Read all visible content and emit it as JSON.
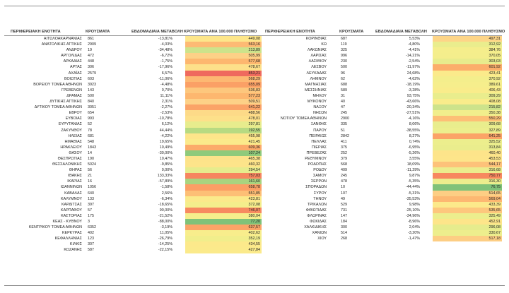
{
  "headers": {
    "unit": "ΠΕΡΙΦΕΡΕΙΑΚΗ ΕΝΟΤΗΤΑ",
    "cases": "ΚΡΟΥΣΜΑΤΑ",
    "weekly_change": "ΕΒΔΟΜΑΔΙΑΙΑ ΜΕΤΑΒΟΛΗ",
    "rate": "ΚΡΟΥΣΜΑΤΑ ΑΝΑ 100.000 ΠΛΗΘΥΣΜΟ"
  },
  "left_rows": [
    {
      "name": "ΑΙΤΩΛΟΑΚΑΡΝΑΝΙΑΣ",
      "cases": "861",
      "change": "-13,81%",
      "rate": "449,08",
      "color": "#fde68a"
    },
    {
      "name": "ΑΝΑΤΟΛΙΚΗΣ ΑΤΤΙΚΗΣ",
      "cases": "2909",
      "change": "-4,03%",
      "rate": "563,16",
      "color": "#fdba74"
    },
    {
      "name": "ΑΝΔΡΟΥ",
      "cases": "19",
      "change": "-34,48%",
      "rate": "213,89",
      "color": "#cde38b"
    },
    {
      "name": "ΑΡΓΟΛΙΔΑΣ",
      "cases": "472",
      "change": "-6,72%",
      "rate": "505,99",
      "color": "#fdd187"
    },
    {
      "name": "ΑΡΚΑΔΙΑΣ",
      "cases": "448",
      "change": "-1,75%",
      "rate": "577,68",
      "color": "#fdb76f"
    },
    {
      "name": "ΑΡΤΑΣ",
      "cases": "306",
      "change": "-17,96%",
      "rate": "478,67",
      "color": "#fde08a"
    },
    {
      "name": "ΑΧΑΪΑΣ",
      "cases": "2579",
      "change": "6,57%",
      "rate": "853,21",
      "color": "#ef6a5e"
    },
    {
      "name": "ΒΟΙΩΤΙΑΣ",
      "cases": "603",
      "change": "-11,06%",
      "rate": "568,29",
      "color": "#fdb872"
    },
    {
      "name": "ΒΟΡΕΙΟΥ ΤΟΜΕΑ ΑΘΗΝΩΝ",
      "cases": "3923",
      "change": "-4,48%",
      "rate": "655,09",
      "color": "#fba066"
    },
    {
      "name": "ΓΡΕΒΕΝΩΝ",
      "cases": "143",
      "change": "0,70%",
      "rate": "536,83",
      "color": "#fdc77d"
    },
    {
      "name": "ΔΡΑΜΑΣ",
      "cases": "500",
      "change": "11,11%",
      "rate": "577,23",
      "color": "#fdb76f"
    },
    {
      "name": "ΔΥΤΙΚΗΣ ΑΤΤΙΚΗΣ",
      "cases": "840",
      "change": "2,31%",
      "rate": "509,51",
      "color": "#fdd187"
    },
    {
      "name": "ΔΥΤΙΚΟΥ ΤΟΜΕΑ ΑΘΗΝΩΝ",
      "cases": "3051",
      "change": "-2,27%",
      "rate": "641,22",
      "color": "#fba367"
    },
    {
      "name": "ΕΒΡΟΥ",
      "cases": "654",
      "change": "-2,53%",
      "rate": "488,56",
      "color": "#fdda88"
    },
    {
      "name": "ΕΥΒΟΙΑΣ",
      "cases": "993",
      "change": "-10,78%",
      "rate": "478,01",
      "color": "#fde08a"
    },
    {
      "name": "ΕΥΡΥΤΑΝΙΑΣ",
      "cases": "52",
      "change": "6,12%",
      "rate": "297,81",
      "color": "#e7ec8d"
    },
    {
      "name": "ΖΑΚΥΝΘΟΥ",
      "cases": "78",
      "change": "44,44%",
      "rate": "192,55",
      "color": "#b7da82"
    },
    {
      "name": "ΗΛΕΙΑΣ",
      "cases": "681",
      "change": "-4,22%",
      "rate": "455,98",
      "color": "#fde58a"
    },
    {
      "name": "ΗΜΑΘΙΑΣ",
      "cases": "548",
      "change": "19,65%",
      "rate": "421,45",
      "color": "#fbea8b"
    },
    {
      "name": "ΗΡΑΚΛΕΙΟΥ",
      "cases": "1843",
      "change": "10,49%",
      "rate": "609,36",
      "color": "#fcab6a"
    },
    {
      "name": "ΘΑΣΟΥ",
      "cases": "14",
      "change": "-30,00%",
      "rate": "107,24",
      "color": "#8fca7b"
    },
    {
      "name": "ΘΕΣΠΡΩΤΙΑΣ",
      "cases": "190",
      "change": "10,47%",
      "rate": "465,38",
      "color": "#fde38a"
    },
    {
      "name": "ΘΕΣΣΑΛΟΝΙΚΗΣ",
      "cases": "5024",
      "change": "-9,85%",
      "rate": "460,32",
      "color": "#fde48a"
    },
    {
      "name": "ΘΗΡΑΣ",
      "cases": "56",
      "change": "0,00%",
      "rate": "294,54",
      "color": "#e6ec8d"
    },
    {
      "name": "ΙΘΑΚΗΣ",
      "cases": "21",
      "change": "133,33%",
      "rate": "757,03",
      "color": "#f6865f"
    },
    {
      "name": "ΙΚΑΡΙΑΣ",
      "cases": "16",
      "change": "-57,89%",
      "rate": "161,60",
      "color": "#a8d47f"
    },
    {
      "name": "ΙΩΑΝΝΙΝΩΝ",
      "cases": "1056",
      "change": "-1,58%",
      "rate": "658,78",
      "color": "#fb9f65"
    },
    {
      "name": "ΚΑΒΑΛΑΣ",
      "cases": "640",
      "change": "2,56%",
      "rate": "551,85",
      "color": "#fdbf76"
    },
    {
      "name": "ΚΑΛΥΜΝΟΥ",
      "cases": "133",
      "change": "-6,34%",
      "rate": "423,81",
      "color": "#fbea8b"
    },
    {
      "name": "ΚΑΡΔΙΤΣΑΣ",
      "cases": "397",
      "change": "-18,65%",
      "rate": "372,08",
      "color": "#f4ee8c"
    },
    {
      "name": "ΚΑΡΠΑΘΟΥ",
      "cases": "57",
      "change": "90,00%",
      "rate": "746,07",
      "color": "#f78a60"
    },
    {
      "name": "ΚΑΣΤΟΡΙΑΣ",
      "cases": "175",
      "change": "-21,52%",
      "rate": "380,04",
      "color": "#f5ee8c"
    },
    {
      "name": "ΚΕΑΣ - ΚΥΘΝΟΥ",
      "cases": "3",
      "change": "-88,00%",
      "rate": "77,20",
      "color": "#7fc279"
    },
    {
      "name": "ΚΕΝΤΡΙΚΟΥ ΤΟΜΕΑ ΑΘΗΝΩΝ",
      "cases": "6352",
      "change": "-3,19%",
      "rate": "637,57",
      "color": "#fba467"
    },
    {
      "name": "ΚΕΡΚΥΡΑΣ",
      "cases": "402",
      "change": "11,05%",
      "rate": "402,62",
      "color": "#f8ed8c"
    },
    {
      "name": "ΚΕΦΑΛΛΗΝΙΑΣ",
      "cases": "123",
      "change": "-26,79%",
      "rate": "352,19",
      "color": "#f1ee8c"
    },
    {
      "name": "ΚΙΛΚΙΣ",
      "cases": "307",
      "change": "-14,25%",
      "rate": "434,55",
      "color": "#fce98b"
    },
    {
      "name": "ΚΟΖΑΝΗΣ",
      "cases": "587",
      "change": "-22,15%",
      "rate": "427,84",
      "color": "#fbea8b"
    }
  ],
  "right_rows": [
    {
      "name": "ΚΟΡΙΝΘΙΑΣ",
      "cases": "687",
      "change": "5,53%",
      "rate": "497,31",
      "color": "#fdd588"
    },
    {
      "name": "ΚΩ",
      "cases": "119",
      "change": "-4,80%",
      "rate": "312,92",
      "color": "#eaed8d"
    },
    {
      "name": "ΛΑΚΩΝΙΑΣ",
      "cases": "325",
      "change": "-4,41%",
      "rate": "384,76",
      "color": "#f5ee8c"
    },
    {
      "name": "ΛΑΡΙΣΑΣ",
      "cases": "996",
      "change": "-14,21%",
      "rate": "370,05",
      "color": "#f4ee8c"
    },
    {
      "name": "ΛΑΣΙΘΙΟΥ",
      "cases": "230",
      "change": "-2,54%",
      "rate": "303,03",
      "color": "#e8ec8d"
    },
    {
      "name": "ΛΕΣΒΟΥ",
      "cases": "500",
      "change": "-11,97%",
      "rate": "601,92",
      "color": "#fcae6b"
    },
    {
      "name": "ΛΕΥΚΑΔΑΣ",
      "cases": "96",
      "change": "24,68%",
      "rate": "423,41",
      "color": "#fbea8b"
    },
    {
      "name": "ΛΗΜΝΟΥ",
      "cases": "62",
      "change": "-4,62%",
      "rate": "370,92",
      "color": "#f4ee8c"
    },
    {
      "name": "ΜΑΓΝΗΣΙΑΣ",
      "cases": "688",
      "change": "-18,19%",
      "rate": "389,61",
      "color": "#f6ee8c"
    },
    {
      "name": "ΜΕΣΣΗΝΙΑΣ",
      "cases": "589",
      "change": "-3,28%",
      "rate": "406,43",
      "color": "#f9ec8b"
    },
    {
      "name": "ΜΗΛΟΥ",
      "cases": "31",
      "change": "93,75%",
      "rate": "309,29",
      "color": "#e9ed8d"
    },
    {
      "name": "ΜΥΚΟΝΟΥ",
      "cases": "40",
      "change": "-43,66%",
      "rate": "408,08",
      "color": "#f9ec8b"
    },
    {
      "name": "ΝΑΞΟΥ",
      "cases": "47",
      "change": "-20,34%",
      "rate": "215,82",
      "color": "#cde38b"
    },
    {
      "name": "ΝΗΣΩΝ",
      "cases": "245",
      "change": "-27,51%",
      "rate": "350,38",
      "color": "#f1ee8c"
    },
    {
      "name": "ΝΟΤΙΟΥ ΤΟΜΕΑ ΑΘΗΝΩΝ",
      "cases": "2900",
      "change": "-4,16%",
      "rate": "550,29",
      "color": "#fdbf76"
    },
    {
      "name": "ΞΑΝΘΗΣ",
      "cases": "335",
      "change": "8,06%",
      "rate": "309,68",
      "color": "#e9ed8d"
    },
    {
      "name": "ΠΑΡΟΥ",
      "cases": "51",
      "change": "-38,55%",
      "rate": "327,89",
      "color": "#ecee8d"
    },
    {
      "name": "ΠΕΙΡΑΙΩΣ",
      "cases": "2842",
      "change": "8,27%",
      "rate": "641,25",
      "color": "#fba367"
    },
    {
      "name": "ΠΕΛΛΑΣ",
      "cases": "411",
      "change": "0,74%",
      "rate": "325,52",
      "color": "#ecee8d"
    },
    {
      "name": "ΠΙΕΡΙΑΣ",
      "cases": "375",
      "change": "-6,95%",
      "rate": "313,84",
      "color": "#eaed8d"
    },
    {
      "name": "ΠΡΕΒΕΖΑΣ",
      "cases": "252",
      "change": "-5,26%",
      "rate": "460,40",
      "color": "#fde48a"
    },
    {
      "name": "ΡΕΘΥΜΝΟΥ",
      "cases": "379",
      "change": "3,55%",
      "rate": "453,53",
      "color": "#fde58a"
    },
    {
      "name": "ΡΟΔΟΠΗΣ",
      "cases": "568",
      "change": "18,09%",
      "rate": "544,17",
      "color": "#fdc27a"
    },
    {
      "name": "ΡΟΔΟΥ",
      "cases": "409",
      "change": "-11,29%",
      "rate": "316,68",
      "color": "#ebed8d"
    },
    {
      "name": "ΣΑΜΟΥ",
      "cases": "245",
      "change": "9,87%",
      "rate": "750,77",
      "color": "#f7885f"
    },
    {
      "name": "ΣΕΡΡΩΝ",
      "cases": "478",
      "change": "-5,35%",
      "rate": "316,30",
      "color": "#ebed8d"
    },
    {
      "name": "ΣΠΟΡΑΔΩΝ",
      "cases": "10",
      "change": "-44,44%",
      "rate": "76,75",
      "color": "#7fc279"
    },
    {
      "name": "ΣΥΡΟΥ",
      "cases": "107",
      "change": "-5,31%",
      "rate": "514,65",
      "color": "#fdce84"
    },
    {
      "name": "ΤΗΝΟΥ",
      "cases": "49",
      "change": "-35,53%",
      "rate": "569,04",
      "color": "#fdb872"
    },
    {
      "name": "ΤΡΙΚΑΛΩΝ",
      "cases": "529",
      "change": "9,98%",
      "rate": "433,39",
      "color": "#fce98b"
    },
    {
      "name": "ΦΘΙΩΤΙΔΑΣ",
      "cases": "731",
      "change": "-25,10%",
      "rate": "535,65",
      "color": "#fdc77d"
    },
    {
      "name": "ΦΛΩΡΙΝΑΣ",
      "cases": "147",
      "change": "-34,96%",
      "rate": "325,49",
      "color": "#ecee8d"
    },
    {
      "name": "ΦΩΚΙΔΑΣ",
      "cases": "184",
      "change": "-8,96%",
      "rate": "452,91",
      "color": "#fde58a"
    },
    {
      "name": "ΧΑΛΚΙΔΙΚΗΣ",
      "cases": "300",
      "change": "2,04%",
      "rate": "296,08",
      "color": "#e6ec8d"
    },
    {
      "name": "ΧΑΝΙΩΝ",
      "cases": "514",
      "change": "-3,20%",
      "rate": "330,67",
      "color": "#edee8d"
    },
    {
      "name": "ΧΙΟΥ",
      "cases": "268",
      "change": "-1,47%",
      "rate": "517,18",
      "color": "#fdce84"
    }
  ]
}
